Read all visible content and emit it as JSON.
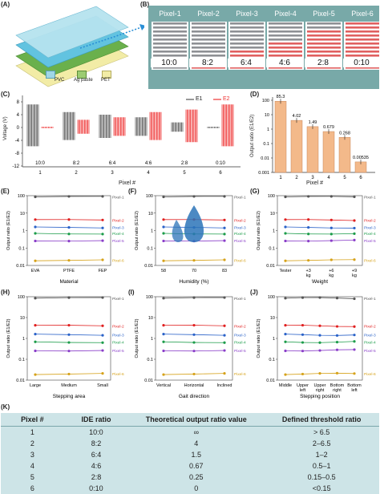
{
  "panels": {
    "a": "(A)",
    "b": "(B)",
    "c": "(C)",
    "d": "(D)",
    "e": "(E)",
    "f": "(F)",
    "g": "(G)",
    "h": "(H)",
    "i": "(I)",
    "j": "(J)",
    "k": "(K)"
  },
  "panel_a": {
    "legend": [
      "PVC",
      "Ag paste",
      "PET"
    ],
    "colors": {
      "pvc": "#9fd6e6",
      "ag": "#9ccc72",
      "pet": "#f2eca6"
    }
  },
  "panel_b": {
    "pixels": [
      {
        "name": "Pixel-1",
        "ratio": "10:0",
        "gray_frac": 1.0
      },
      {
        "name": "Pixel-2",
        "ratio": "8:2",
        "gray_frac": 0.8
      },
      {
        "name": "Pixel-3",
        "ratio": "6:4",
        "gray_frac": 0.6
      },
      {
        "name": "Pixel-4",
        "ratio": "4:6",
        "gray_frac": 0.4
      },
      {
        "name": "Pixel-5",
        "ratio": "2:8",
        "gray_frac": 0.2
      },
      {
        "name": "Pixel-6",
        "ratio": "0:10",
        "gray_frac": 0.0
      }
    ],
    "colors": {
      "bg": "#78a9a8",
      "gray": "#8e9094",
      "red": "#e06060"
    }
  },
  "panel_c": {
    "ylabel": "Voltage (V)",
    "xlabel": "Pixel #",
    "yticks": [
      "8",
      "4",
      "0",
      "-4",
      "-8",
      "-12"
    ],
    "xticks": [
      "1",
      "2",
      "3",
      "4",
      "5",
      "6"
    ],
    "ratios": [
      "10:0",
      "8:2",
      "6:4",
      "4:6",
      "2:8",
      "0:10"
    ],
    "legend": [
      "E1",
      "E2"
    ],
    "amplitudes": {
      "e1": [
        9,
        6,
        5,
        4,
        2,
        0.3
      ],
      "e2": [
        0.3,
        3,
        4,
        6,
        7,
        9
      ]
    },
    "colors": {
      "e1": "#555555",
      "e2": "#ee3333"
    }
  },
  "chart_data": {
    "type": "bar",
    "title": "",
    "xlabel": "Pixel #",
    "ylabel": "Output ratio (E1/E2)",
    "categories": [
      "1",
      "2",
      "3",
      "4",
      "5",
      "6"
    ],
    "values": [
      85.3,
      4.02,
      1.49,
      0.679,
      0.268,
      0.00535
    ],
    "value_labels": [
      "85.3",
      "4.02",
      "1.49",
      "0.679",
      "0.268",
      "0.00535"
    ],
    "yscale": "log",
    "ylim": [
      0.001,
      100
    ],
    "yticks": [
      "0.001",
      "0.01",
      "0.1",
      "1",
      "10",
      "100"
    ],
    "bar_color": "#f3b98a"
  },
  "mini": {
    "yticks": [
      "0.01",
      "0.1",
      "1",
      "10",
      "100"
    ],
    "ylabel": "Output ratio (E1/E2)",
    "series_names": [
      "Pixel-1",
      "Pixel-2",
      "Pixel-3",
      "Pixel-4",
      "Pixel-5",
      "Pixel-6"
    ],
    "series_colors": [
      "#555555",
      "#e02020",
      "#2a62c8",
      "#1c9c4a",
      "#8a3ec9",
      "#d6a21a"
    ],
    "series_levels": [
      85,
      4,
      1.5,
      0.68,
      0.27,
      0.02
    ],
    "e": {
      "xlabel": "Material",
      "xticks": [
        "EVA",
        "PTFE",
        "FEP"
      ]
    },
    "f": {
      "xlabel": "Humidity (%)",
      "xticks": [
        "58",
        "70",
        "83"
      ]
    },
    "g": {
      "xlabel": "Weight",
      "xticks": [
        "Tester",
        "+3 kg",
        "+6 kg",
        "+9 kg"
      ]
    },
    "h": {
      "xlabel": "Stepping area",
      "xticks": [
        "Large",
        "Medium",
        "Small"
      ]
    },
    "i": {
      "xlabel": "Gait direction",
      "xticks": [
        "Vertical",
        "Horizontal",
        "Inclined"
      ]
    },
    "j": {
      "xlabel": "Stepping position",
      "xticks": [
        "Middle",
        "Upper left",
        "Upper right",
        "Bottom right",
        "Bottom left"
      ]
    }
  },
  "table_k": {
    "headers": [
      "Pixel #",
      "IDE ratio",
      "Theoretical output ratio value",
      "Defined threshold ratio"
    ],
    "rows": [
      [
        "1",
        "10:0",
        "∞",
        "> 6.5"
      ],
      [
        "2",
        "8:2",
        "4",
        "2–6.5"
      ],
      [
        "3",
        "6:4",
        "1.5",
        "1–2"
      ],
      [
        "4",
        "4:6",
        "0.67",
        "0.5–1"
      ],
      [
        "5",
        "2:8",
        "0.25",
        "0.15–0.5"
      ],
      [
        "6",
        "0:10",
        "0",
        "<0.15"
      ]
    ],
    "bg": "#cde4e7"
  }
}
